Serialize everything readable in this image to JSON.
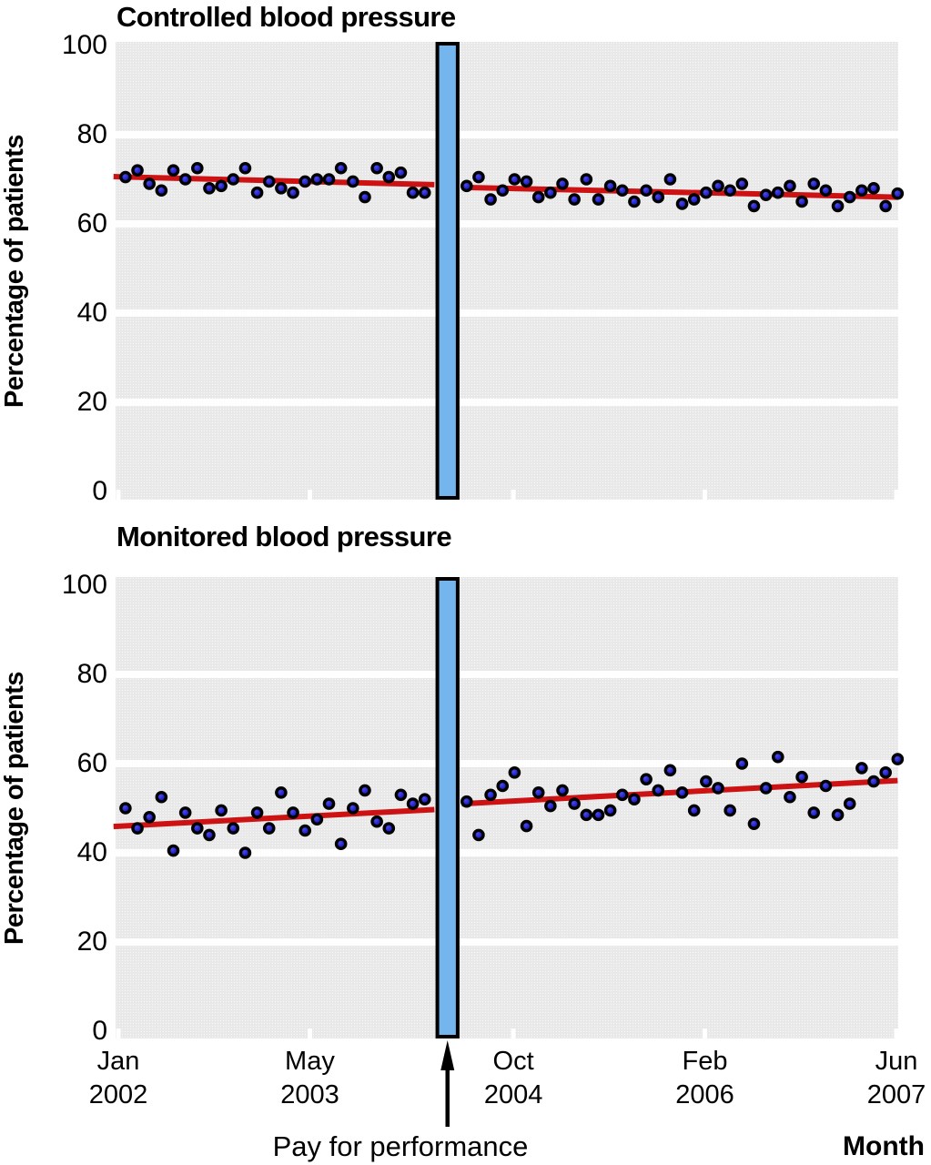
{
  "chart_data": {
    "type": "scatter",
    "xlabel": "Month",
    "intervention_label": "Pay for performance",
    "ylim": [
      0,
      100
    ],
    "yticks": [
      0,
      20,
      40,
      60,
      80,
      100
    ],
    "x_ticks": [
      {
        "line1": "Jan",
        "line2": "2002",
        "month": 0
      },
      {
        "line1": "May",
        "line2": "2003",
        "month": 16
      },
      {
        "line1": "Oct",
        "line2": "2004",
        "month": 33
      },
      {
        "line1": "Feb",
        "line2": "2006",
        "month": 49
      },
      {
        "line1": "Jun",
        "line2": "2007",
        "month": 65
      }
    ],
    "intervention_window_months": [
      26.5,
      28.5
    ],
    "colors": {
      "panel_bg": "#e8e8e8",
      "grid_band": "#ffffff",
      "point_core": "#2222c4",
      "point_ring": "#000000",
      "trend": "#cc1212",
      "bar_fill": "#74b5ee",
      "bar_border": "#000000",
      "text": "#000000"
    },
    "panels": [
      {
        "title": "Controlled blood pressure",
        "ylabel": "Percentage of patients",
        "pre": {
          "start_month": 0.6,
          "values": [
            70.5,
            72,
            69,
            67.5,
            72,
            70,
            72.5,
            68,
            68.5,
            70,
            72.5,
            67,
            69.5,
            68,
            67,
            69.5,
            70,
            70,
            72.5,
            69.5,
            66,
            72.5,
            70.5,
            71.5,
            67,
            67
          ]
        },
        "post": {
          "start_month": 29.1,
          "values": [
            68.5,
            70.5,
            65.5,
            67.5,
            70,
            69.5,
            66,
            67,
            69,
            65.5,
            70,
            65.5,
            68.5,
            67.5,
            65,
            67.5,
            66,
            70,
            64.5,
            65.5,
            67,
            68.5,
            67.5,
            69,
            64,
            66.5,
            67,
            68.5,
            65,
            69,
            67.5,
            64,
            66,
            67.5,
            68,
            64,
            66.8
          ]
        },
        "trend_pre": {
          "m0": -0.4,
          "v0": 70.6,
          "m1": 26.4,
          "v1": 68.8
        },
        "trend_post": {
          "m0": 28.7,
          "v0": 68.2,
          "m1": 65.1,
          "v1": 66.0
        }
      },
      {
        "title": "Monitored blood pressure",
        "ylabel": "Percentage of patients",
        "pre": {
          "start_month": 0.6,
          "values": [
            50,
            45.5,
            48,
            52.5,
            40.5,
            49,
            45.5,
            44,
            49.5,
            45.5,
            40,
            49,
            45.5,
            53.5,
            49,
            45,
            47.5,
            51,
            42,
            50,
            54,
            47,
            45.5,
            53,
            51,
            52
          ]
        },
        "post": {
          "start_month": 29.1,
          "values": [
            51.5,
            44,
            53,
            55,
            58,
            46,
            53.5,
            50.5,
            54,
            51,
            48.5,
            48.5,
            49.5,
            53,
            52,
            56.5,
            54,
            58.5,
            53.5,
            49.5,
            56,
            54.5,
            49.5,
            60,
            46.5,
            54.5,
            61.5,
            52.5,
            57,
            49,
            55,
            48.5,
            51,
            59,
            56,
            58,
            61
          ]
        },
        "trend_pre": {
          "m0": -0.4,
          "v0": 45.9,
          "m1": 26.4,
          "v1": 49.7
        },
        "trend_post": {
          "m0": 28.7,
          "v0": 51.0,
          "m1": 65.1,
          "v1": 56.2
        }
      }
    ]
  }
}
